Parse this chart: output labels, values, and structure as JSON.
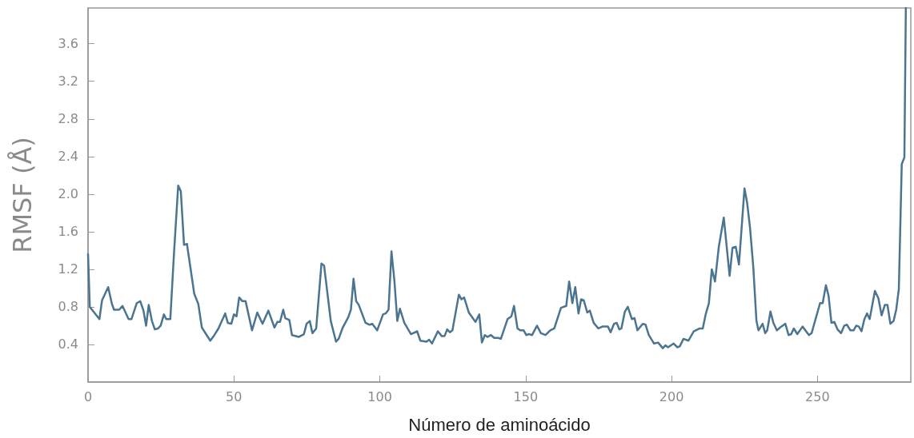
{
  "chart_data": {
    "type": "line",
    "xlabel": "Número de aminoácido",
    "ylabel": "RMSF (Å)",
    "xlim": [
      0,
      282
    ],
    "xticks": [
      0,
      50,
      100,
      150,
      200,
      250
    ],
    "ylim": [
      0,
      3.98
    ],
    "yticks": [
      0.4,
      0.8,
      1.2,
      1.6,
      {
        "value": 2,
        "label": "2.0"
      },
      2.4,
      2.8,
      3.2,
      3.6
    ],
    "grid": false,
    "marker": "none",
    "line_style": "solid",
    "series": [
      {
        "color": "#4a7490",
        "x": [
          0,
          0.6,
          3.9,
          4.8,
          6.9,
          8.2,
          8.9,
          10.7,
          11.8,
          13.9,
          14.9,
          16.7,
          17.9,
          19,
          19.9,
          20.8,
          21.9,
          22.9,
          24,
          24.9,
          26,
          26.8,
          28.2,
          29.5,
          30.9,
          31.8,
          32.9,
          33.9,
          36.4,
          37.8,
          39,
          41.9,
          43.3,
          44.7,
          47,
          47.9,
          49.1,
          50,
          50.9,
          51.8,
          52.9,
          54,
          56.2,
          58,
          59.8,
          61.8,
          63.9,
          64.9,
          65.8,
          66.9,
          67.6,
          69,
          69.9,
          72.2,
          74,
          74.9,
          76,
          76.9,
          78.2,
          80,
          80.9,
          83.2,
          85,
          85.9,
          87.3,
          89.2,
          90.1,
          91,
          91.9,
          92.8,
          95.1,
          96.5,
          97.4,
          99.1,
          101.1,
          102,
          103,
          104,
          105,
          106,
          106.9,
          108.4,
          110.7,
          112.8,
          113.9,
          116,
          116.9,
          117.9,
          119.9,
          121.2,
          122.2,
          123.1,
          124,
          124.9,
          127.1,
          128,
          128.9,
          130.5,
          132.8,
          134.1,
          135,
          136,
          136.9,
          138.1,
          139.2,
          140.6,
          141.5,
          143.8,
          145.1,
          146,
          147.2,
          148.2,
          149.3,
          150.2,
          151.1,
          152.2,
          153.9,
          155.2,
          156.8,
          158.4,
          159.8,
          162.1,
          163.9,
          164.9,
          166,
          167,
          168.1,
          169,
          169.9,
          171.1,
          172,
          173.3,
          174.9,
          176.3,
          178.2,
          179.1,
          180.3,
          181.2,
          182.1,
          182.8,
          184,
          185,
          186.4,
          187.3,
          188.3,
          189.6,
          190.2,
          191.1,
          192.2,
          194,
          195.4,
          197,
          197.9,
          198.8,
          200.7,
          202,
          202.8,
          204.1,
          205.8,
          207.6,
          209.6,
          210.7,
          211.7,
          212.8,
          213.8,
          214.9,
          216.2,
          217.9,
          219.9,
          220.9,
          222,
          223.1,
          225,
          225.9,
          226.9,
          228,
          229.1,
          229.8,
          231.2,
          232.1,
          232.8,
          233.9,
          234.9,
          236.1,
          237.2,
          239,
          240.1,
          241,
          241.9,
          243.1,
          244.9,
          247.1,
          248,
          250.9,
          251.8,
          252.9,
          253.8,
          254.8,
          255.8,
          256.9,
          258.1,
          259.2,
          260.1,
          261.3,
          262.4,
          263.3,
          264.2,
          265.1,
          266.1,
          267,
          267.9,
          269.7,
          270.9,
          272,
          273.1,
          274,
          275,
          276.1,
          277,
          277.9,
          278.9,
          279.8,
          280.3
        ],
        "values": [
          1.36,
          0.8,
          0.67,
          0.87,
          1.01,
          0.83,
          0.77,
          0.77,
          0.81,
          0.67,
          0.67,
          0.84,
          0.86,
          0.76,
          0.6,
          0.82,
          0.65,
          0.56,
          0.57,
          0.6,
          0.72,
          0.67,
          0.67,
          1.39,
          2.09,
          2.03,
          1.46,
          1.47,
          0.94,
          0.83,
          0.58,
          0.44,
          0.5,
          0.57,
          0.73,
          0.63,
          0.62,
          0.72,
          0.7,
          0.9,
          0.86,
          0.86,
          0.55,
          0.74,
          0.62,
          0.76,
          0.58,
          0.64,
          0.64,
          0.77,
          0.68,
          0.66,
          0.5,
          0.48,
          0.51,
          0.62,
          0.65,
          0.52,
          0.57,
          1.26,
          1.24,
          0.65,
          0.43,
          0.46,
          0.58,
          0.69,
          0.77,
          1.1,
          0.86,
          0.82,
          0.63,
          0.61,
          0.62,
          0.55,
          0.72,
          0.73,
          0.77,
          1.39,
          1.08,
          0.65,
          0.78,
          0.63,
          0.51,
          0.54,
          0.44,
          0.43,
          0.45,
          0.41,
          0.54,
          0.49,
          0.49,
          0.56,
          0.53,
          0.55,
          0.93,
          0.88,
          0.9,
          0.74,
          0.64,
          0.72,
          0.42,
          0.5,
          0.48,
          0.5,
          0.47,
          0.47,
          0.46,
          0.67,
          0.7,
          0.81,
          0.57,
          0.55,
          0.55,
          0.5,
          0.51,
          0.5,
          0.6,
          0.52,
          0.5,
          0.55,
          0.57,
          0.79,
          0.81,
          1.07,
          0.84,
          1.01,
          0.73,
          0.88,
          0.87,
          0.74,
          0.76,
          0.63,
          0.57,
          0.59,
          0.59,
          0.53,
          0.62,
          0.63,
          0.56,
          0.57,
          0.75,
          0.8,
          0.67,
          0.68,
          0.55,
          0.6,
          0.62,
          0.61,
          0.5,
          0.41,
          0.42,
          0.36,
          0.39,
          0.37,
          0.41,
          0.37,
          0.38,
          0.46,
          0.44,
          0.54,
          0.57,
          0.57,
          0.72,
          0.84,
          1.2,
          1.07,
          1.44,
          1.75,
          1.13,
          1.43,
          1.44,
          1.25,
          2.06,
          1.91,
          1.64,
          1.23,
          0.65,
          0.55,
          0.62,
          0.52,
          0.55,
          0.75,
          0.63,
          0.55,
          0.58,
          0.62,
          0.5,
          0.51,
          0.57,
          0.51,
          0.59,
          0.5,
          0.52,
          0.84,
          0.84,
          1.03,
          0.92,
          0.63,
          0.64,
          0.56,
          0.52,
          0.6,
          0.61,
          0.55,
          0.55,
          0.6,
          0.59,
          0.54,
          0.67,
          0.73,
          0.67,
          0.97,
          0.89,
          0.71,
          0.82,
          0.82,
          0.62,
          0.65,
          0.77,
          0.99,
          2.32,
          2.39,
          3.98
        ]
      }
    ]
  }
}
